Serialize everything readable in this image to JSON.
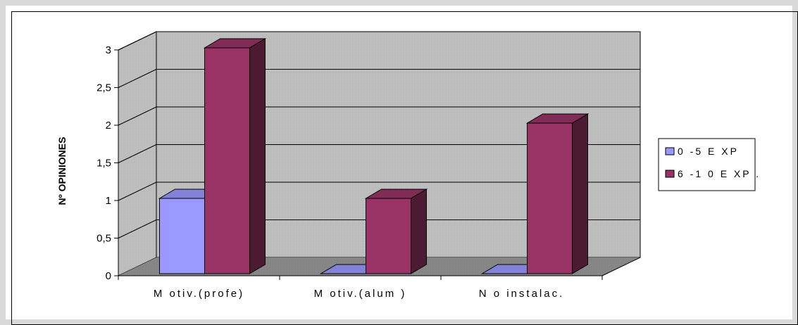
{
  "chart_data": {
    "type": "bar",
    "style": "3d-clustered-column",
    "categories": [
      "M otiv.(profe)",
      "M otiv.(alum )",
      "N o instalac."
    ],
    "series": [
      {
        "name": "0 -5  E XP",
        "values": [
          1,
          0,
          0
        ],
        "color": "#9999ff"
      },
      {
        "name": "6 -1 0  E XP .",
        "values": [
          3,
          1,
          2
        ],
        "color": "#993366"
      }
    ],
    "ylabel": "Nº OPINIONES",
    "xlabel": "",
    "ylim": [
      0,
      3
    ],
    "yticks": [
      "0",
      "0,5",
      "1",
      "1,5",
      "2",
      "2,5",
      "3"
    ],
    "grid": true,
    "legend_position": "right",
    "wall_color": "#c0c0c0",
    "floor_color": "#808080"
  }
}
